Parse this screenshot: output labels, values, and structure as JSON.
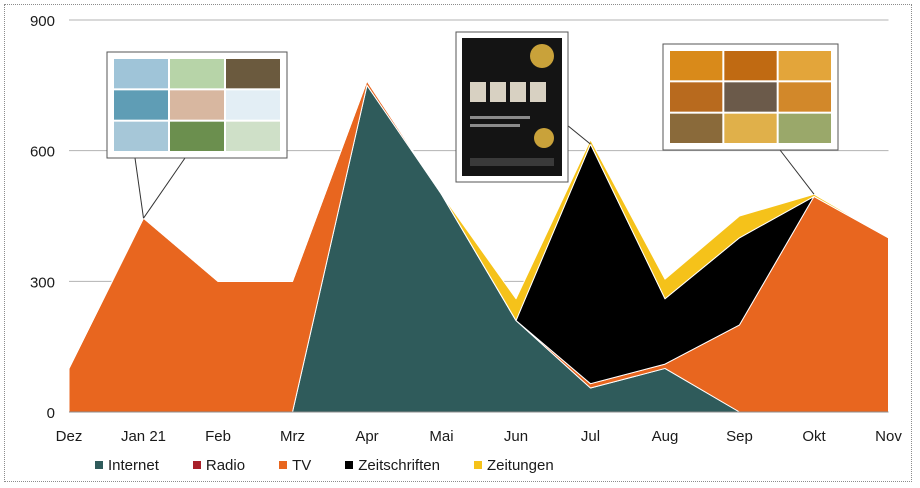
{
  "chart_data": {
    "type": "area",
    "stacked": true,
    "categories": [
      "Dez",
      "Jan 21",
      "Feb",
      "Mrz",
      "Apr",
      "Mai",
      "Jun",
      "Jul",
      "Aug",
      "Sep",
      "Okt",
      "Nov"
    ],
    "ylim": [
      0,
      900
    ],
    "yticks": [
      "0",
      "300",
      "600",
      "900"
    ],
    "grid": true,
    "legend_position": "bottom",
    "series": [
      {
        "name": "Internet",
        "color": "#2f5b5b",
        "values": [
          0,
          0,
          0,
          0,
          750,
          500,
          210,
          55,
          100,
          0,
          0,
          0
        ]
      },
      {
        "name": "Radio",
        "color": "#a8202a",
        "values": [
          0,
          0,
          0,
          0,
          0,
          0,
          0,
          0,
          0,
          0,
          0,
          0
        ]
      },
      {
        "name": "TV",
        "color": "#e8661f",
        "values": [
          100,
          445,
          300,
          300,
          10,
          0,
          0,
          10,
          10,
          200,
          495,
          400
        ]
      },
      {
        "name": "Zeitschriften",
        "color": "#000000",
        "values": [
          0,
          0,
          0,
          0,
          0,
          0,
          0,
          550,
          150,
          200,
          0,
          0
        ]
      },
      {
        "name": "Zeitungen",
        "color": "#f5c21a",
        "values": [
          0,
          0,
          0,
          0,
          0,
          0,
          50,
          10,
          45,
          50,
          5,
          0
        ]
      }
    ],
    "annotations": [
      {
        "name": "tv-ad-thumbnail",
        "month": "Jan 21",
        "value": 445
      },
      {
        "name": "magazine-ad-thumbnail",
        "month": "Jul",
        "value": 615
      },
      {
        "name": "online-ad-thumbnail",
        "month": "Okt",
        "value": 500
      }
    ]
  }
}
